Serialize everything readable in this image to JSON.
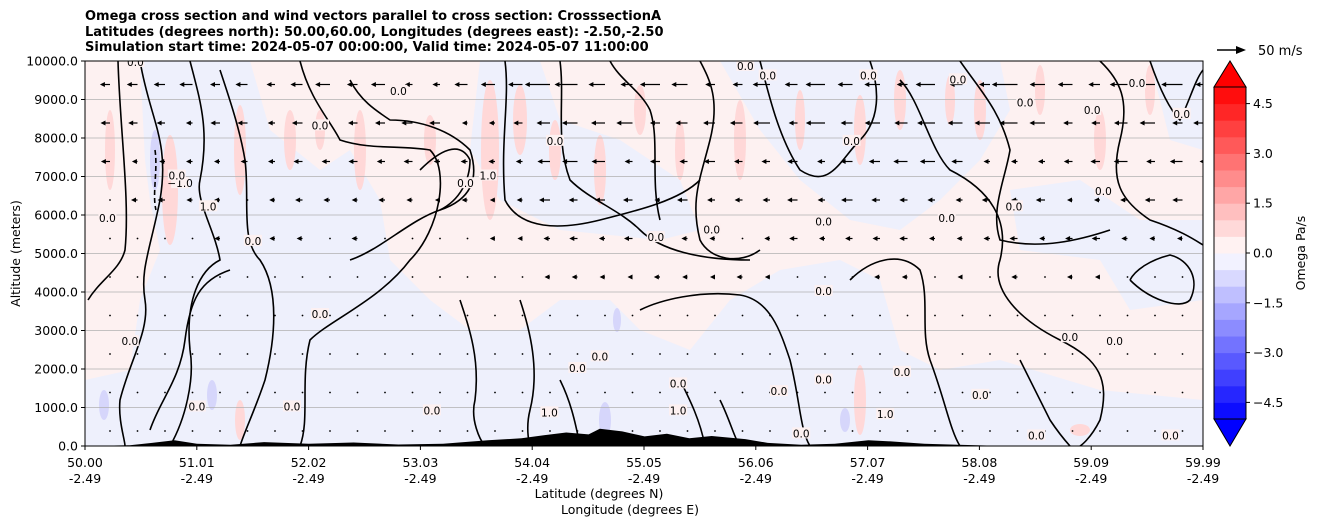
{
  "chart_data": {
    "type": "contour",
    "title_lines": [
      "Omega cross section and wind vectors parallel to cross section: CrosssectionA",
      "Latitudes (degrees north): 50.00,60.00, Longitudes (degrees east): -2.50,-2.50",
      "Simulation start time: 2024-05-07 00:00:00, Valid time: 2024-05-07 11:00:00"
    ],
    "xlabel_line1": "Latitude (degrees N)",
    "xlabel_line2": "Longitude (degrees E)",
    "ylabel": "Altitude (meters)",
    "xlim": [
      50.0,
      59.99
    ],
    "ylim": [
      0,
      10000
    ],
    "x_ticks": [
      {
        "lat": "50.00",
        "lon": "-2.49"
      },
      {
        "lat": "51.01",
        "lon": "-2.49"
      },
      {
        "lat": "52.02",
        "lon": "-2.49"
      },
      {
        "lat": "53.03",
        "lon": "-2.49"
      },
      {
        "lat": "54.04",
        "lon": "-2.49"
      },
      {
        "lat": "55.05",
        "lon": "-2.49"
      },
      {
        "lat": "56.06",
        "lon": "-2.49"
      },
      {
        "lat": "57.07",
        "lon": "-2.49"
      },
      {
        "lat": "58.08",
        "lon": "-2.49"
      },
      {
        "lat": "59.09",
        "lon": "-2.49"
      },
      {
        "lat": "59.99",
        "lon": "-2.49"
      }
    ],
    "y_ticks": [
      "0.0",
      "1000.0",
      "2000.0",
      "3000.0",
      "4000.0",
      "5000.0",
      "6000.0",
      "7000.0",
      "8000.0",
      "9000.0",
      "10000.0"
    ],
    "y_tick_values": [
      0,
      1000,
      2000,
      3000,
      4000,
      5000,
      6000,
      7000,
      8000,
      9000,
      10000
    ],
    "grid": "horizontal",
    "colorbar": {
      "label": "Omega Pa/s",
      "range": [
        -5.0,
        5.0
      ],
      "ticks": [
        "4.5",
        "3.0",
        "1.5",
        "0.0",
        "−1.5",
        "−3.0",
        "−4.5"
      ],
      "tick_values": [
        4.5,
        3.0,
        1.5,
        0.0,
        -1.5,
        -3.0,
        -4.5
      ],
      "extend": "both",
      "colormap": "bwr"
    },
    "quiver_key": {
      "label": "50 m/s",
      "value": 50
    },
    "contour_labels": [
      {
        "lat": 50.85,
        "alt": 6800,
        "text": "−1.0"
      },
      {
        "lat": 51.1,
        "alt": 6200,
        "text": "1.0"
      },
      {
        "lat": 53.6,
        "alt": 7000,
        "text": "1.0"
      },
      {
        "lat": 50.2,
        "alt": 5900,
        "text": "0.0"
      },
      {
        "lat": 50.45,
        "alt": 9950,
        "text": "0.0"
      },
      {
        "lat": 50.82,
        "alt": 7000,
        "text": "0.0"
      },
      {
        "lat": 51.5,
        "alt": 5300,
        "text": "0.0"
      },
      {
        "lat": 52.1,
        "alt": 8300,
        "text": "0.0"
      },
      {
        "lat": 52.1,
        "alt": 3400,
        "text": "0.0"
      },
      {
        "lat": 52.8,
        "alt": 9200,
        "text": "0.0"
      },
      {
        "lat": 53.4,
        "alt": 6800,
        "text": "0.0"
      },
      {
        "lat": 54.2,
        "alt": 7900,
        "text": "0.0"
      },
      {
        "lat": 55.1,
        "alt": 5400,
        "text": "0.0"
      },
      {
        "lat": 55.6,
        "alt": 5600,
        "text": "0.0"
      },
      {
        "lat": 55.9,
        "alt": 9850,
        "text": "0.0"
      },
      {
        "lat": 56.1,
        "alt": 9600,
        "text": "0.0"
      },
      {
        "lat": 56.6,
        "alt": 5800,
        "text": "0.0"
      },
      {
        "lat": 56.85,
        "alt": 7900,
        "text": "0.0"
      },
      {
        "lat": 57.0,
        "alt": 9600,
        "text": "0.0"
      },
      {
        "lat": 56.6,
        "alt": 4000,
        "text": "0.0"
      },
      {
        "lat": 57.7,
        "alt": 5900,
        "text": "0.0"
      },
      {
        "lat": 57.8,
        "alt": 9500,
        "text": "0.0"
      },
      {
        "lat": 58.3,
        "alt": 6200,
        "text": "0.0"
      },
      {
        "lat": 58.4,
        "alt": 8900,
        "text": "0.0"
      },
      {
        "lat": 59.0,
        "alt": 8700,
        "text": "0.0"
      },
      {
        "lat": 59.1,
        "alt": 6600,
        "text": "0.0"
      },
      {
        "lat": 59.4,
        "alt": 9400,
        "text": "0.0"
      },
      {
        "lat": 59.8,
        "alt": 8600,
        "text": "0.0"
      },
      {
        "lat": 50.4,
        "alt": 2700,
        "text": "0.0"
      },
      {
        "lat": 51.0,
        "alt": 1000,
        "text": "0.0"
      },
      {
        "lat": 51.85,
        "alt": 1000,
        "text": "0.0"
      },
      {
        "lat": 53.1,
        "alt": 900,
        "text": "0.0"
      },
      {
        "lat": 54.4,
        "alt": 2000,
        "text": "0.0"
      },
      {
        "lat": 54.6,
        "alt": 2300,
        "text": "0.0"
      },
      {
        "lat": 55.3,
        "alt": 1600,
        "text": "0.0"
      },
      {
        "lat": 56.2,
        "alt": 1400,
        "text": "0.0"
      },
      {
        "lat": 56.6,
        "alt": 1700,
        "text": "0.0"
      },
      {
        "lat": 57.3,
        "alt": 1900,
        "text": "0.0"
      },
      {
        "lat": 58.0,
        "alt": 1300,
        "text": "0.0"
      },
      {
        "lat": 58.8,
        "alt": 2800,
        "text": "0.0"
      },
      {
        "lat": 59.2,
        "alt": 2700,
        "text": "0.0"
      },
      {
        "lat": 54.15,
        "alt": 850,
        "text": "1.0"
      },
      {
        "lat": 55.3,
        "alt": 900,
        "text": "1.0"
      },
      {
        "lat": 57.15,
        "alt": 800,
        "text": "1.0"
      },
      {
        "lat": 56.4,
        "alt": 300,
        "text": "0.0"
      },
      {
        "lat": 58.5,
        "alt": 250,
        "text": "0.0"
      },
      {
        "lat": 59.7,
        "alt": 250,
        "text": "0.0"
      }
    ]
  }
}
